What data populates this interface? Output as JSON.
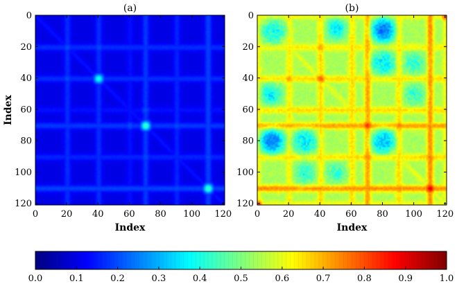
{
  "chart_data": [
    {
      "type": "heatmap",
      "title": "(a)",
      "xlabel": "Index",
      "ylabel": "Index",
      "xlim": [
        0,
        121
      ],
      "ylim": [
        0,
        121
      ],
      "y_axis_inverted": true,
      "x_ticks": [
        0,
        20,
        40,
        60,
        80,
        100,
        120
      ],
      "y_ticks": [
        0,
        20,
        40,
        60,
        80,
        100,
        120
      ],
      "base_value": 0.1,
      "diagonal_value": 0.14,
      "grid_lines": [
        {
          "index": 20,
          "value": 0.17
        },
        {
          "index": 40,
          "value": 0.17
        },
        {
          "index": 60,
          "value": 0.14
        },
        {
          "index": 70,
          "value": 0.18
        },
        {
          "index": 90,
          "value": 0.16
        },
        {
          "index": 110,
          "value": 0.19
        }
      ],
      "peaks": [
        {
          "row": 40,
          "col": 40,
          "value": 0.4
        },
        {
          "row": 70,
          "col": 70,
          "value": 0.45
        },
        {
          "row": 110,
          "col": 110,
          "value": 0.45
        },
        {
          "row": 20,
          "col": 20,
          "value": 0.2
        },
        {
          "row": 20,
          "col": 40,
          "value": 0.2
        },
        {
          "row": 70,
          "col": 90,
          "value": 0.2
        },
        {
          "row": 90,
          "col": 110,
          "value": 0.2
        },
        {
          "row": 60,
          "col": 70,
          "value": 0.2
        }
      ]
    },
    {
      "type": "heatmap",
      "title": "(b)",
      "xlabel": "Index",
      "ylabel": "",
      "xlim": [
        0,
        121
      ],
      "ylim": [
        0,
        121
      ],
      "y_axis_inverted": true,
      "x_ticks": [
        0,
        20,
        40,
        60,
        80,
        100,
        120
      ],
      "y_ticks": [
        0,
        20,
        40,
        60,
        80,
        100,
        120
      ],
      "base_value": 0.54,
      "diagonal_value": 0.6,
      "grid_lines": [
        {
          "index": 20,
          "value": 0.64
        },
        {
          "index": 40,
          "value": 0.66
        },
        {
          "index": 60,
          "value": 0.66
        },
        {
          "index": 70,
          "value": 0.72
        },
        {
          "index": 90,
          "value": 0.66
        },
        {
          "index": 110,
          "value": 0.74
        },
        {
          "index": 0,
          "value": 0.62
        },
        {
          "index": 120,
          "value": 0.62
        }
      ],
      "peaks": [
        {
          "row": 40,
          "col": 40,
          "value": 0.78
        },
        {
          "row": 70,
          "col": 70,
          "value": 0.85
        },
        {
          "row": 110,
          "col": 110,
          "value": 0.9
        },
        {
          "row": 120,
          "col": 0,
          "value": 0.8
        },
        {
          "row": 0,
          "col": 120,
          "value": 0.8
        },
        {
          "row": 70,
          "col": 90,
          "value": 0.76
        },
        {
          "row": 90,
          "col": 110,
          "value": 0.76
        },
        {
          "row": 20,
          "col": 40,
          "value": 0.72
        },
        {
          "row": 110,
          "col": 70,
          "value": 0.74
        }
      ],
      "low_spots": [
        {
          "row": 10,
          "col": 80,
          "value": 0.28
        },
        {
          "row": 80,
          "col": 8,
          "value": 0.25
        },
        {
          "row": 50,
          "col": 8,
          "value": 0.35
        },
        {
          "row": 30,
          "col": 80,
          "value": 0.35
        },
        {
          "row": 80,
          "col": 80,
          "value": 0.33
        },
        {
          "row": 100,
          "col": 30,
          "value": 0.4
        },
        {
          "row": 10,
          "col": 10,
          "value": 0.4
        },
        {
          "row": 80,
          "col": 30,
          "value": 0.38
        },
        {
          "row": 50,
          "col": 100,
          "value": 0.42
        }
      ]
    }
  ],
  "colorbar": {
    "ticks": [
      0.0,
      0.1,
      0.2,
      0.3,
      0.4,
      0.5,
      0.6,
      0.7,
      0.8,
      0.9,
      1.0
    ],
    "tick_labels": [
      "0.0",
      "0.1",
      "0.2",
      "0.3",
      "0.4",
      "0.5",
      "0.6",
      "0.7",
      "0.8",
      "0.9",
      "1.0"
    ],
    "range": [
      0,
      1
    ],
    "colormap": "jet"
  },
  "colors": {
    "jet_stops": [
      "#00007f",
      "#0000ff",
      "#007fff",
      "#00ffff",
      "#7fff7f",
      "#ffff00",
      "#ff7f00",
      "#ff0000",
      "#7f0000"
    ]
  }
}
